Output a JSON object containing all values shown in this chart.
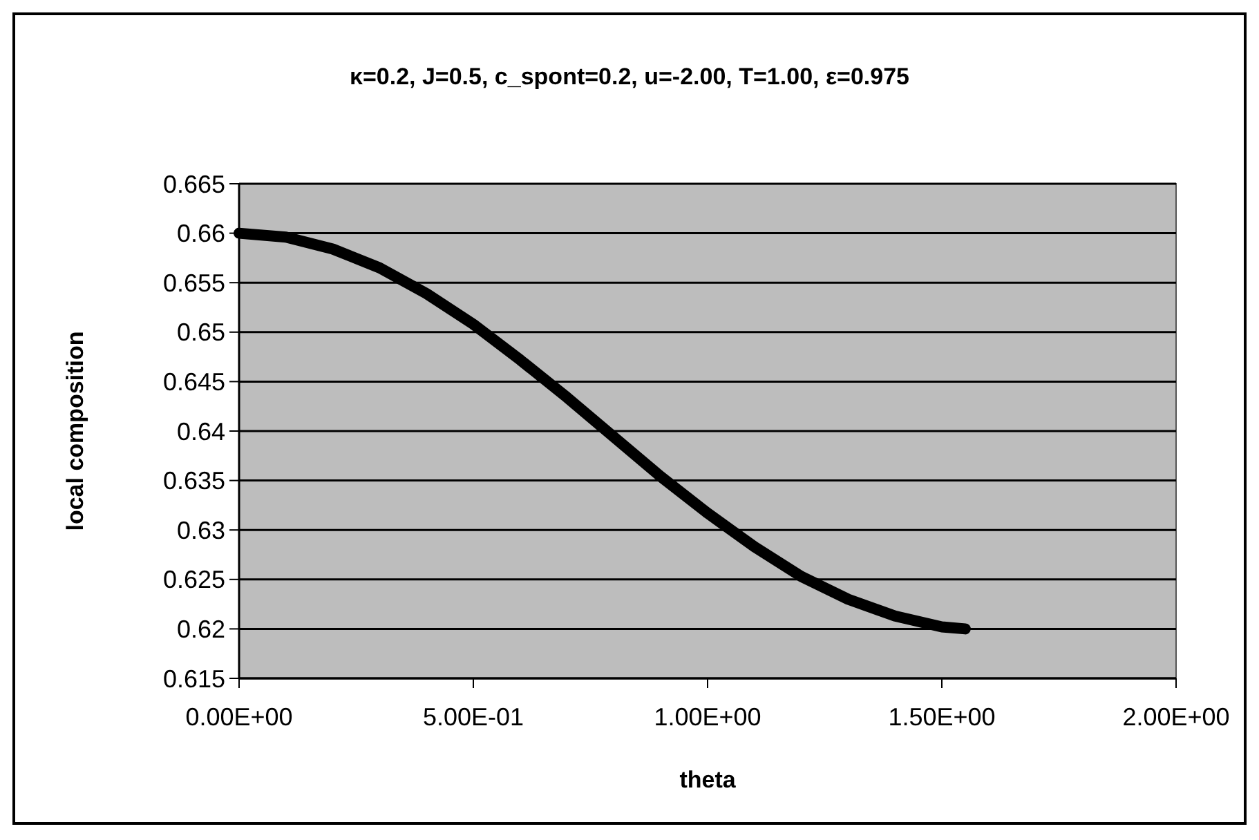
{
  "chart_data": {
    "type": "line",
    "title": "κ=0.2, J=0.5, c_spont=0.2, u=-2.00, T=1.00, ε=0.975",
    "xlabel": "theta",
    "ylabel": "local composition",
    "xlim": [
      0,
      2
    ],
    "xticks": [
      {
        "value": 0,
        "label": "0.00E+00"
      },
      {
        "value": 0.5,
        "label": "5.00E-01"
      },
      {
        "value": 1,
        "label": "1.00E+00"
      },
      {
        "value": 1.5,
        "label": "1.50E+00"
      },
      {
        "value": 2,
        "label": "2.00E+00"
      }
    ],
    "ylim": [
      0.615,
      0.665
    ],
    "yticks": [
      0.615,
      0.62,
      0.625,
      0.63,
      0.635,
      0.64,
      0.645,
      0.65,
      0.655,
      0.66,
      0.665
    ],
    "grid": "y",
    "marker": "none",
    "line_style": "solid",
    "series": [
      {
        "color": "#000000",
        "x": [
          0,
          0.1,
          0.2,
          0.3,
          0.4,
          0.5,
          0.6,
          0.7,
          0.8,
          0.9,
          1.0,
          1.1,
          1.2,
          1.3,
          1.4,
          1.5,
          1.55
        ],
        "values": [
          0.66,
          0.6596,
          0.6584,
          0.6565,
          0.6539,
          0.6508,
          0.6472,
          0.6434,
          0.6394,
          0.6354,
          0.6317,
          0.6283,
          0.6253,
          0.623,
          0.6213,
          0.6202,
          0.62
        ]
      }
    ]
  }
}
